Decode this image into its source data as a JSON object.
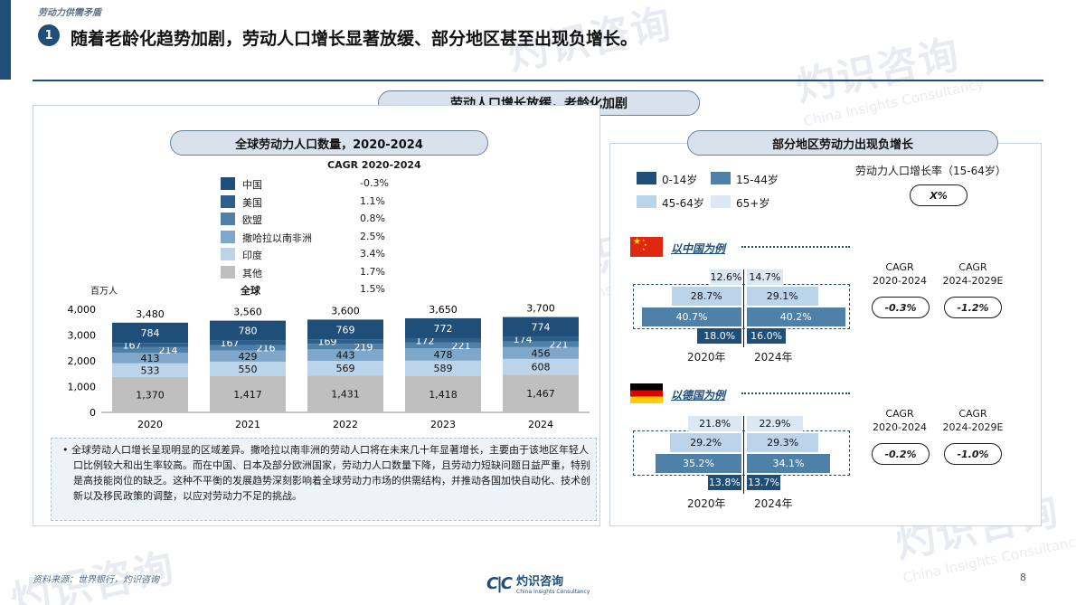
{
  "header": {
    "breadcrumb": "劳动力供需矛盾",
    "title_number": "1",
    "title": "随着老龄化趋势加剧，劳动人口增长显著放缓、部分地区甚至出现负增长。"
  },
  "main_banner": "劳动人口增长放缓，老龄化加剧",
  "left_panel": {
    "banner": "全球劳动力人口数量，2020-2024",
    "cagr_header": "CAGR 2020-2024",
    "unit": "百万人",
    "legend": [
      {
        "label": "中国",
        "cagr": "-0.3%",
        "color": "#1f4e79"
      },
      {
        "label": "美国",
        "cagr": "1.1%",
        "color": "#2e5f8a"
      },
      {
        "label": "欧盟",
        "cagr": "0.8%",
        "color": "#4f81a8"
      },
      {
        "label": "撒哈拉以南非洲",
        "cagr": "2.5%",
        "color": "#7fa7c9"
      },
      {
        "label": "印度",
        "cagr": "3.4%",
        "color": "#bcd4ea"
      },
      {
        "label": "其他",
        "cagr": "1.7%",
        "color": "#bfbfbf"
      }
    ],
    "global_label": "全球",
    "global_cagr": "1.5%",
    "note": "全球劳动人口增长呈现明显的区域差异。撒哈拉以南非洲的劳动人口将在未来几十年显著增长，主要由于该地区年轻人口比例较大和出生率较高。而在中国、日本及部分欧洲国家，劳动力人口数量下降，且劳动力短缺问题日益严重，特别是高技能岗位的缺乏。这种不平衡的发展趋势深刻影响着全球劳动力市场的供需结构，并推动各国加快自动化、技术创新以及移民政策的调整，以应对劳动力不足的挑战。"
  },
  "chart_data": {
    "type": "bar",
    "stacked": true,
    "categories": [
      "2020",
      "2021",
      "2022",
      "2023",
      "2024"
    ],
    "series": [
      {
        "name": "其他",
        "values": [
          1370,
          1417,
          1431,
          1418,
          1467
        ],
        "labels": [
          "1,370",
          "1,417",
          "1,431",
          "1,418",
          "1,467"
        ],
        "color": "#bfbfbf"
      },
      {
        "name": "印度",
        "values": [
          533,
          550,
          569,
          589,
          608
        ],
        "labels": [
          "533",
          "550",
          "569",
          "589",
          "608"
        ],
        "color": "#bcd4ea"
      },
      {
        "name": "撒哈拉以南非洲",
        "values": [
          413,
          429,
          443,
          478,
          456
        ],
        "labels": [
          "413",
          "429",
          "443",
          "478",
          "456"
        ],
        "color": "#7fa7c9"
      },
      {
        "name": "欧盟",
        "values": [
          214,
          216,
          219,
          221,
          221
        ],
        "labels": [
          "214",
          "216",
          "219",
          "221",
          "221"
        ],
        "color": "#4f81a8"
      },
      {
        "name": "美国",
        "values": [
          167,
          167,
          169,
          172,
          174
        ],
        "labels": [
          "167",
          "167",
          "169",
          "172",
          "174"
        ],
        "color": "#2e5f8a"
      },
      {
        "name": "中国",
        "values": [
          784,
          780,
          769,
          772,
          774
        ],
        "labels": [
          "784",
          "780",
          "769",
          "772",
          "774"
        ],
        "color": "#1f4e79"
      }
    ],
    "totals": [
      "3,480",
      "3,560",
      "3,600",
      "3,650",
      "3,700"
    ],
    "yticks": [
      "0",
      "1,000",
      "2,000",
      "3,000",
      "4,000"
    ],
    "ylim": [
      0,
      4000
    ],
    "ylabel": "百万人"
  },
  "right_panel": {
    "banner": "部分地区劳动力出现负增长",
    "legend": [
      {
        "label": "0-14岁",
        "color": "#1f4e79"
      },
      {
        "label": "15-44岁",
        "color": "#4f81a8"
      },
      {
        "label": "45-64岁",
        "color": "#bcd4ea"
      },
      {
        "label": "65+岁",
        "color": "#dbe7f3"
      }
    ],
    "growth_label": "劳动力人口增长率（15-64岁）",
    "growth_example": "X%",
    "cagr_col1": [
      "CAGR",
      "2020-2024"
    ],
    "cagr_col2": [
      "CAGR",
      "2024-2029E"
    ],
    "china": {
      "title": "以中国为例",
      "years": [
        "2020年",
        "2024年"
      ],
      "y2020": {
        "s65": "12.6%",
        "s45": "28.7%",
        "s15": "40.7%",
        "s0": "18.0%"
      },
      "y2024": {
        "s65": "14.7%",
        "s45": "29.1%",
        "s15": "40.2%",
        "s0": "16.0%"
      },
      "cagr1": "-0.3%",
      "cagr2": "-1.2%"
    },
    "germany": {
      "title": "以德国为例",
      "years": [
        "2020年",
        "2024年"
      ],
      "y2020": {
        "s65": "21.8%",
        "s45": "29.2%",
        "s15": "35.2%",
        "s0": "13.8%"
      },
      "y2024": {
        "s65": "22.9%",
        "s45": "29.3%",
        "s15": "34.1%",
        "s0": "13.7%"
      },
      "cagr1": "-0.2%",
      "cagr2": "-1.0%"
    }
  },
  "footer": {
    "source": "资料来源：世界银行，灼识咨询",
    "logo_text": "灼识咨询",
    "logo_sub": "China Insights Consultancy",
    "page": "8"
  },
  "watermark": {
    "big": "灼识咨询",
    "small": "China Insights Consultancy"
  }
}
